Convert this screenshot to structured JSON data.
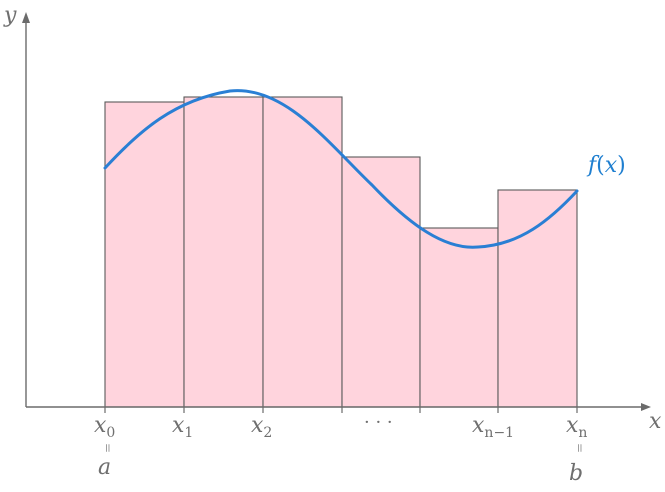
{
  "axes": {
    "x_label": "x",
    "y_label": "y"
  },
  "function_label": {
    "name": "f",
    "open": "(",
    "arg": "x",
    "close": ")"
  },
  "ticks": [
    {
      "base": "x",
      "sub": "0"
    },
    {
      "base": "x",
      "sub": "1"
    },
    {
      "base": "x",
      "sub": "2"
    },
    {
      "base": "",
      "sub": "",
      "text": "· · ·"
    },
    {
      "base": "x",
      "sub": "n−1"
    },
    {
      "base": "x",
      "sub": "n"
    }
  ],
  "endpoints": {
    "left": {
      "eq": "=",
      "label": "a"
    },
    "right": {
      "eq": "=",
      "label": "b"
    }
  },
  "colors": {
    "rect_fill": "#ffd4dd",
    "curve": "#2a7fd4",
    "axis": "#6b6b6b"
  }
}
